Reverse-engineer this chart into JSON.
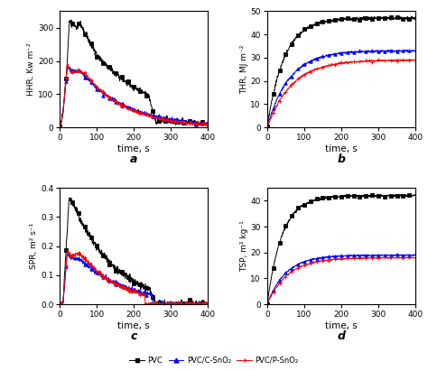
{
  "title_a": "a",
  "title_b": "b",
  "title_c": "c",
  "title_d": "d",
  "xlabel": "time, s",
  "ylabel_a": "HHR, Kw m⁻²",
  "ylabel_b": "THR, MJ m⁻²",
  "ylabel_c": "SPR, m² s⁻¹",
  "ylabel_d": "TSP, m² kg⁻¹",
  "xlim": [
    0,
    400
  ],
  "ylim_a": [
    0,
    350
  ],
  "ylim_b": [
    0,
    50
  ],
  "ylim_c": [
    0,
    0.4
  ],
  "ylim_d": [
    0,
    45
  ],
  "colors": [
    "black",
    "blue",
    "red"
  ],
  "legend_labels": [
    "PVC",
    "PVC/C-SnO₂",
    "PVC/P-SnO₂"
  ],
  "yticks_a": [
    0,
    100,
    200,
    300
  ],
  "yticks_b": [
    0,
    10,
    20,
    30,
    40,
    50
  ],
  "yticks_c": [
    0.0,
    0.1,
    0.2,
    0.3,
    0.4
  ],
  "yticks_d": [
    0,
    10,
    20,
    30,
    40
  ],
  "xticks": [
    0,
    100,
    200,
    300,
    400
  ]
}
